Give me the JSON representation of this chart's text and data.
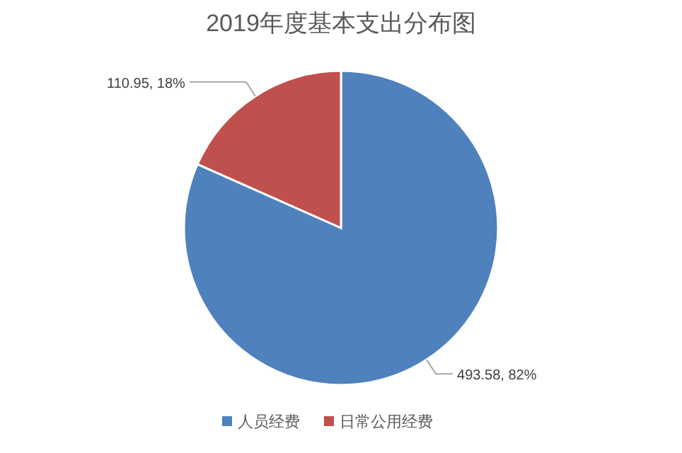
{
  "chart_data": {
    "type": "pie",
    "title": "2019年度基本支出分布图",
    "categories": [
      "人员经费",
      "日常公用经费"
    ],
    "values": [
      493.58,
      110.95
    ],
    "colors": [
      "#4f81bd",
      "#c0504d"
    ],
    "value_labels": [
      "493.58, 82%",
      "110.95, 18%"
    ],
    "legend": "bottom"
  }
}
